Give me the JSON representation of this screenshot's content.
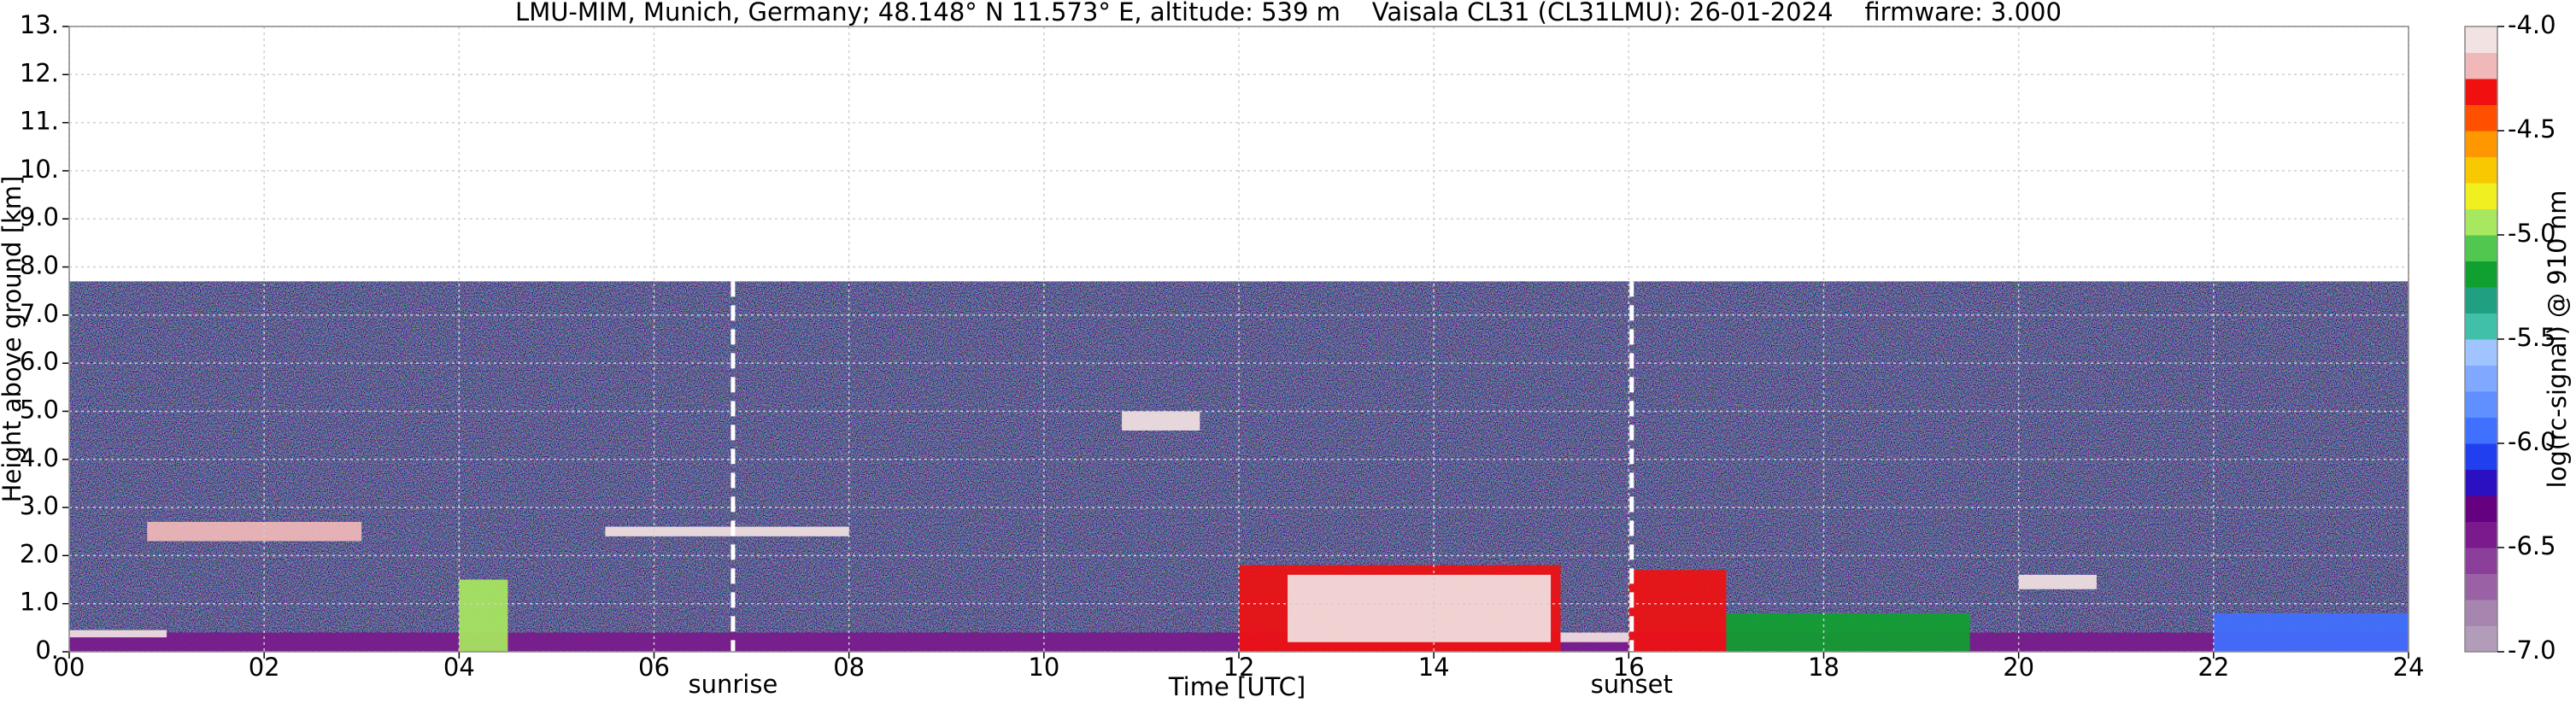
{
  "chart_data": {
    "type": "heatmap",
    "title": "LMU-MIM, Munich, Germany; 48.148° N 11.573° E, altitude: 539 m    Vaisala CL31 (CL31LMU): 26-01-2024    firmware: 3.000",
    "x_label": "Time [UTC]",
    "y_label": "Height above ground [km]",
    "xlim": [
      0,
      24
    ],
    "xticks": [
      {
        "value": 0,
        "label": "00"
      },
      {
        "value": 2,
        "label": "02"
      },
      {
        "value": 4,
        "label": "04"
      },
      {
        "value": 6,
        "label": "06"
      },
      {
        "value": 8,
        "label": "08"
      },
      10,
      12,
      14,
      16,
      18,
      20,
      22,
      24
    ],
    "ylim": [
      0,
      13
    ],
    "yticks": [
      {
        "value": 0,
        "label": "0."
      },
      {
        "value": 1,
        "label": "1.0"
      },
      {
        "value": 2,
        "label": "2.0"
      },
      {
        "value": 3,
        "label": "3.0"
      },
      {
        "value": 4,
        "label": "4.0"
      },
      {
        "value": 5,
        "label": "5.0"
      },
      {
        "value": 6,
        "label": "6.0"
      },
      {
        "value": 7,
        "label": "7.0"
      },
      {
        "value": 8,
        "label": "8.0"
      },
      {
        "value": 9,
        "label": "9.0"
      },
      {
        "value": 10,
        "label": "10."
      },
      {
        "value": 11,
        "label": "11."
      },
      {
        "value": 12,
        "label": "12."
      },
      {
        "value": 13,
        "label": "13."
      }
    ],
    "grid": true,
    "signal_top": 7.7,
    "markers": [
      {
        "label": "sunrise",
        "x": 6.81
      },
      {
        "label": "sunset",
        "x": 16.03
      }
    ],
    "regions": [
      {
        "x": [
          0,
          24
        ],
        "y": [
          0,
          0.4
        ],
        "level": -6.5
      },
      {
        "x": [
          22,
          24
        ],
        "y": [
          0,
          0.8
        ],
        "level": -6.0
      },
      {
        "x": [
          0,
          1
        ],
        "y": [
          0.3,
          0.45
        ],
        "level": -4.0
      },
      {
        "x": [
          0.8,
          3
        ],
        "y": [
          2.3,
          2.7
        ],
        "level": -4.25
      },
      {
        "x": [
          4,
          4.5
        ],
        "y": [
          0,
          1.5
        ],
        "level": -5.0
      },
      {
        "x": [
          5.5,
          8
        ],
        "y": [
          2.4,
          2.6
        ],
        "level": -4.0
      },
      {
        "x": [
          10.8,
          11.6
        ],
        "y": [
          4.6,
          5.0
        ],
        "level": -4.0
      },
      {
        "x": [
          12,
          15.3
        ],
        "y": [
          0,
          1.8
        ],
        "level": -4.375
      },
      {
        "x": [
          12.5,
          15.2
        ],
        "y": [
          0.2,
          1.6
        ],
        "level": -4.0
      },
      {
        "x": [
          15.3,
          16
        ],
        "y": [
          0.2,
          0.4
        ],
        "level": -4.0
      },
      {
        "x": [
          16,
          17
        ],
        "y": [
          0,
          1.7
        ],
        "level": -4.375
      },
      {
        "x": [
          17,
          19.5
        ],
        "y": [
          0,
          0.8
        ],
        "level": -5.25
      },
      {
        "x": [
          20,
          20.8
        ],
        "y": [
          1.3,
          1.6
        ],
        "level": -4.0
      }
    ],
    "colorbar": {
      "label": "log(rc-signal) @ 910 nm",
      "range": [
        -7,
        -4
      ],
      "ticks": [
        {
          "value": -7,
          "label": "-7.0"
        },
        -6.5,
        {
          "value": -6,
          "label": "-6.0"
        },
        -5.5,
        {
          "value": -5,
          "label": "-5.0"
        },
        -4.5,
        {
          "value": -4,
          "label": "-4.0"
        }
      ],
      "colors": [
        "#b29cba",
        "#a686af",
        "#9a62a5",
        "#8b3f9a",
        "#7a1a8c",
        "#650080",
        "#2a10c0",
        "#2040f0",
        "#4070ff",
        "#6090ff",
        "#80a8ff",
        "#a0c4ff",
        "#40c0a8",
        "#20a080",
        "#10a030",
        "#50c850",
        "#a8e860",
        "#f0f020",
        "#f8c800",
        "#ff9800",
        "#ff5000",
        "#f01010",
        "#f0b8b8",
        "#f2e2e2"
      ]
    }
  }
}
